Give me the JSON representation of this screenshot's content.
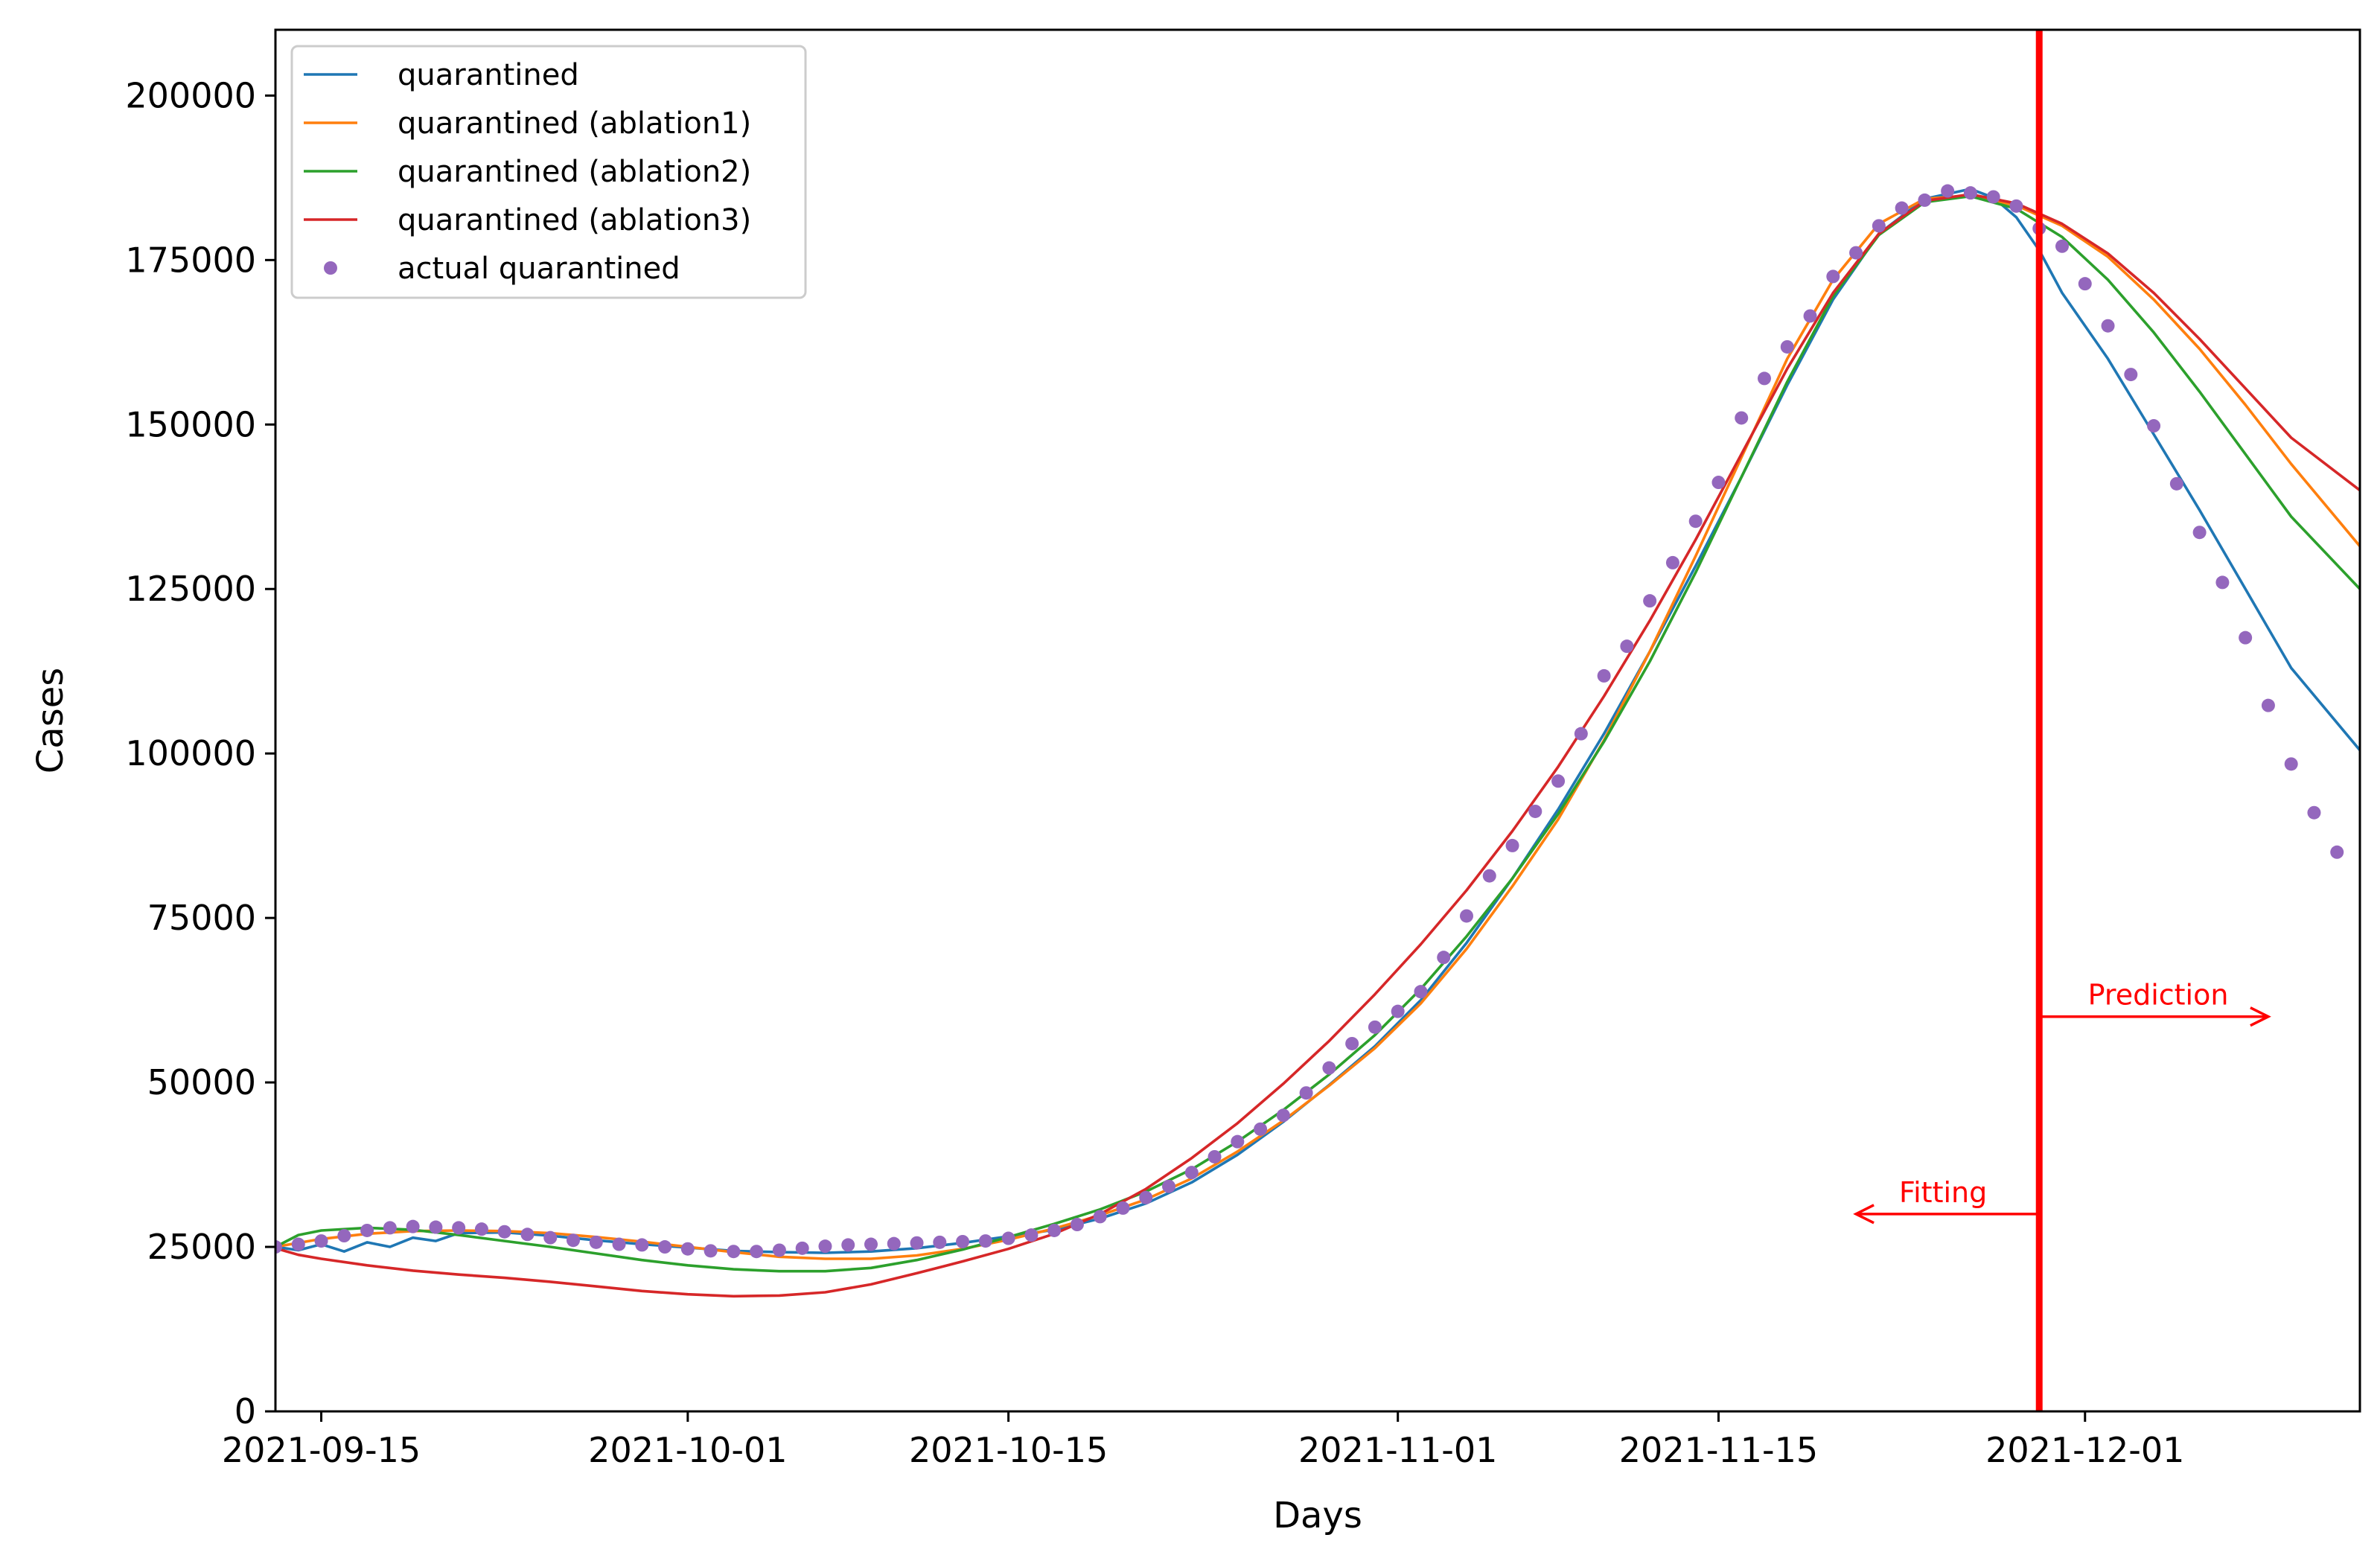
{
  "chart_data": {
    "type": "line",
    "title": "",
    "xlabel": "Days",
    "ylabel": "Cases",
    "x_start_date": "2021-09-13",
    "x_range_days": [
      0,
      91
    ],
    "ylim": [
      0,
      210000
    ],
    "x_ticks": [
      {
        "day": 2,
        "label": "2021-09-15"
      },
      {
        "day": 18,
        "label": "2021-10-01"
      },
      {
        "day": 32,
        "label": "2021-10-15"
      },
      {
        "day": 49,
        "label": "2021-11-01"
      },
      {
        "day": 63,
        "label": "2021-11-15"
      },
      {
        "day": 79,
        "label": "2021-12-01"
      }
    ],
    "y_ticks": [
      {
        "value": 0,
        "label": "0"
      },
      {
        "value": 25000,
        "label": "25000"
      },
      {
        "value": 50000,
        "label": "50000"
      },
      {
        "value": 75000,
        "label": "75000"
      },
      {
        "value": 100000,
        "label": "100000"
      },
      {
        "value": 125000,
        "label": "125000"
      },
      {
        "value": 150000,
        "label": "150000"
      },
      {
        "value": 175000,
        "label": "175000"
      },
      {
        "value": 200000,
        "label": "200000"
      }
    ],
    "legend_position": "top-left",
    "series": [
      {
        "name": "quarantined",
        "kind": "line",
        "color": "#1f77b4",
        "points": [
          [
            0,
            25000
          ],
          [
            1,
            24500
          ],
          [
            2,
            25400
          ],
          [
            3,
            24300
          ],
          [
            4,
            25700
          ],
          [
            5,
            25000
          ],
          [
            6,
            26400
          ],
          [
            7,
            25900
          ],
          [
            8,
            27100
          ],
          [
            10,
            27200
          ],
          [
            12,
            26700
          ],
          [
            14,
            26000
          ],
          [
            16,
            25400
          ],
          [
            18,
            24900
          ],
          [
            20,
            24400
          ],
          [
            22,
            24200
          ],
          [
            24,
            24100
          ],
          [
            26,
            24300
          ],
          [
            28,
            24800
          ],
          [
            30,
            25600
          ],
          [
            32,
            26600
          ],
          [
            34,
            27600
          ],
          [
            36,
            29300
          ],
          [
            38,
            31600
          ],
          [
            40,
            34800
          ],
          [
            42,
            39000
          ],
          [
            44,
            44000
          ],
          [
            46,
            49600
          ],
          [
            48,
            55500
          ],
          [
            50,
            62500
          ],
          [
            52,
            71200
          ],
          [
            54,
            81000
          ],
          [
            56,
            91500
          ],
          [
            58,
            103000
          ],
          [
            60,
            115500
          ],
          [
            62,
            128500
          ],
          [
            64,
            142000
          ],
          [
            66,
            156000
          ],
          [
            68,
            169000
          ],
          [
            70,
            179000
          ],
          [
            72,
            184300
          ],
          [
            74,
            185800
          ],
          [
            75,
            184500
          ],
          [
            76,
            181500
          ],
          [
            77,
            176500
          ],
          [
            78,
            170000
          ],
          [
            80,
            160000
          ],
          [
            82,
            148500
          ],
          [
            84,
            137000
          ],
          [
            86,
            125000
          ],
          [
            88,
            113000
          ],
          [
            91,
            100500
          ]
        ]
      },
      {
        "name": "quarantined (ablation1)",
        "kind": "line",
        "color": "#ff7f0e",
        "points": [
          [
            0,
            25000
          ],
          [
            2,
            26200
          ],
          [
            4,
            27000
          ],
          [
            6,
            27400
          ],
          [
            8,
            27500
          ],
          [
            10,
            27400
          ],
          [
            12,
            27100
          ],
          [
            14,
            26500
          ],
          [
            16,
            25800
          ],
          [
            18,
            25000
          ],
          [
            20,
            24200
          ],
          [
            22,
            23500
          ],
          [
            24,
            23200
          ],
          [
            26,
            23200
          ],
          [
            28,
            23700
          ],
          [
            30,
            24700
          ],
          [
            32,
            26100
          ],
          [
            34,
            27800
          ],
          [
            36,
            29800
          ],
          [
            38,
            32200
          ],
          [
            40,
            35400
          ],
          [
            42,
            39500
          ],
          [
            44,
            44200
          ],
          [
            46,
            49500
          ],
          [
            48,
            55200
          ],
          [
            50,
            62000
          ],
          [
            52,
            70300
          ],
          [
            54,
            79800
          ],
          [
            56,
            90000
          ],
          [
            58,
            102000
          ],
          [
            60,
            115500
          ],
          [
            62,
            130000
          ],
          [
            64,
            145000
          ],
          [
            66,
            160000
          ],
          [
            68,
            172000
          ],
          [
            70,
            180500
          ],
          [
            72,
            184300
          ],
          [
            74,
            184800
          ],
          [
            76,
            183300
          ],
          [
            78,
            180200
          ],
          [
            80,
            175500
          ],
          [
            82,
            169000
          ],
          [
            84,
            161500
          ],
          [
            86,
            153000
          ],
          [
            88,
            144000
          ],
          [
            91,
            131500
          ]
        ]
      },
      {
        "name": "quarantined (ablation2)",
        "kind": "line",
        "color": "#2ca02c",
        "points": [
          [
            0,
            25000
          ],
          [
            1,
            26800
          ],
          [
            2,
            27500
          ],
          [
            4,
            27900
          ],
          [
            6,
            27600
          ],
          [
            8,
            26800
          ],
          [
            10,
            25900
          ],
          [
            12,
            25000
          ],
          [
            14,
            24000
          ],
          [
            16,
            23000
          ],
          [
            18,
            22200
          ],
          [
            20,
            21600
          ],
          [
            22,
            21300
          ],
          [
            24,
            21300
          ],
          [
            26,
            21800
          ],
          [
            28,
            23000
          ],
          [
            30,
            24600
          ],
          [
            32,
            26500
          ],
          [
            34,
            28500
          ],
          [
            36,
            30700
          ],
          [
            38,
            33400
          ],
          [
            40,
            36800
          ],
          [
            42,
            41000
          ],
          [
            44,
            45800
          ],
          [
            46,
            51200
          ],
          [
            48,
            57200
          ],
          [
            50,
            64200
          ],
          [
            52,
            72200
          ],
          [
            54,
            81000
          ],
          [
            56,
            90800
          ],
          [
            58,
            101800
          ],
          [
            60,
            114000
          ],
          [
            62,
            127500
          ],
          [
            64,
            142000
          ],
          [
            66,
            156500
          ],
          [
            68,
            169500
          ],
          [
            70,
            178800
          ],
          [
            72,
            183800
          ],
          [
            74,
            184700
          ],
          [
            76,
            182800
          ],
          [
            78,
            178500
          ],
          [
            80,
            172000
          ],
          [
            82,
            164000
          ],
          [
            84,
            155000
          ],
          [
            86,
            145500
          ],
          [
            88,
            136000
          ],
          [
            91,
            125000
          ]
        ]
      },
      {
        "name": "quarantined (ablation3)",
        "kind": "line",
        "color": "#d62728",
        "points": [
          [
            0,
            24800
          ],
          [
            1,
            23800
          ],
          [
            2,
            23200
          ],
          [
            4,
            22200
          ],
          [
            6,
            21400
          ],
          [
            8,
            20800
          ],
          [
            10,
            20300
          ],
          [
            12,
            19700
          ],
          [
            14,
            19000
          ],
          [
            16,
            18300
          ],
          [
            18,
            17800
          ],
          [
            20,
            17500
          ],
          [
            22,
            17600
          ],
          [
            24,
            18100
          ],
          [
            26,
            19300
          ],
          [
            28,
            21000
          ],
          [
            30,
            22800
          ],
          [
            32,
            24700
          ],
          [
            34,
            27000
          ],
          [
            36,
            30000
          ],
          [
            38,
            33800
          ],
          [
            40,
            38500
          ],
          [
            42,
            43800
          ],
          [
            44,
            49800
          ],
          [
            46,
            56300
          ],
          [
            48,
            63400
          ],
          [
            50,
            71000
          ],
          [
            52,
            79200
          ],
          [
            54,
            88200
          ],
          [
            56,
            98000
          ],
          [
            58,
            108700
          ],
          [
            60,
            120200
          ],
          [
            62,
            132500
          ],
          [
            64,
            145500
          ],
          [
            66,
            158500
          ],
          [
            68,
            170000
          ],
          [
            70,
            179000
          ],
          [
            72,
            184000
          ],
          [
            74,
            185000
          ],
          [
            76,
            183600
          ],
          [
            78,
            180500
          ],
          [
            80,
            176000
          ],
          [
            82,
            170000
          ],
          [
            84,
            163000
          ],
          [
            86,
            155500
          ],
          [
            88,
            148000
          ],
          [
            91,
            140000
          ]
        ]
      },
      {
        "name": "actual quarantined",
        "kind": "scatter",
        "color": "#9467bd",
        "x_start": 0,
        "x_step": 1,
        "values": [
          25000,
          25400,
          25900,
          26700,
          27500,
          27900,
          28100,
          28000,
          27900,
          27700,
          27300,
          26900,
          26400,
          26000,
          25700,
          25400,
          25300,
          25000,
          24700,
          24400,
          24300,
          24300,
          24500,
          24800,
          25100,
          25300,
          25400,
          25500,
          25600,
          25700,
          25800,
          25900,
          26300,
          26800,
          27500,
          28400,
          29600,
          30900,
          32500,
          34200,
          36300,
          38700,
          41000,
          42900,
          45000,
          48400,
          52200,
          55900,
          58400,
          60800,
          63800,
          69000,
          75300,
          81400,
          86000,
          91200,
          95800,
          103000,
          111800,
          116300,
          123200,
          129000,
          135300,
          141200,
          151000,
          157000,
          161800,
          166500,
          172500,
          176100,
          180200,
          182900,
          184100,
          185500,
          185200,
          184600,
          183200,
          179800,
          177100,
          171400,
          165000,
          157600,
          149800,
          141000,
          133600,
          126000,
          117600,
          107300,
          98400,
          91000,
          85000
        ]
      }
    ],
    "vertical_line": {
      "day": 77,
      "color": "#ff0000"
    },
    "annotations": [
      {
        "text": "Fitting",
        "x_from_day": 77,
        "x_to_day": 69,
        "y": 30000,
        "color": "#ff0000"
      },
      {
        "text": "Prediction",
        "x_from_day": 77,
        "x_to_day": 87,
        "y": 60000,
        "color": "#ff0000"
      }
    ]
  }
}
